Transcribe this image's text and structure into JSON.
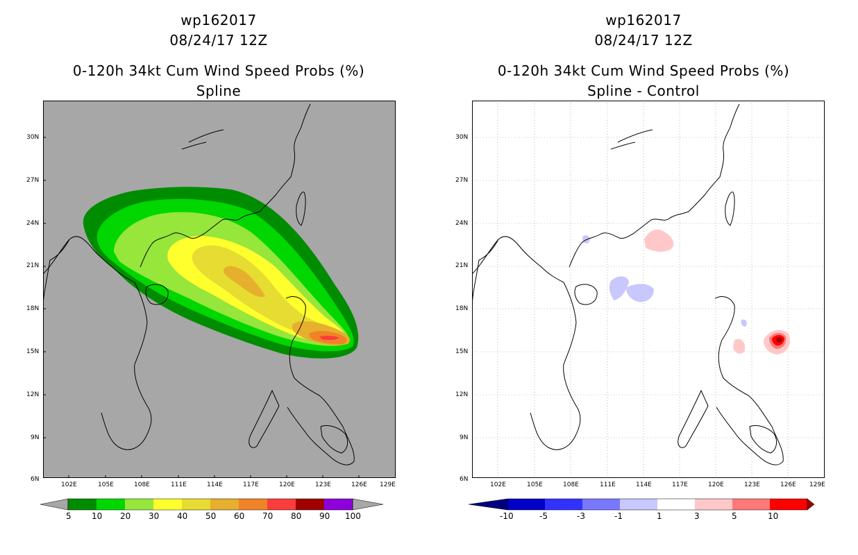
{
  "panels": [
    {
      "title_line1": "wp162017",
      "title_line2": "08/24/17 12Z",
      "title_line3": "0-120h 34kt Cum Wind Speed Probs (%)",
      "title_line4": "Spline",
      "background": "#a7a7a7",
      "colorbar": {
        "labels": [
          "5",
          "10",
          "20",
          "30",
          "40",
          "50",
          "60",
          "70",
          "80",
          "90",
          "100"
        ],
        "colors": [
          "#008c00",
          "#00d700",
          "#96e63c",
          "#ffff2d",
          "#e6dc32",
          "#e6af2d",
          "#f08228",
          "#fa3c3c",
          "#a00000",
          "#8c00dc"
        ]
      }
    },
    {
      "title_line1": "wp162017",
      "title_line2": "08/24/17 12Z",
      "title_line3": "0-120h 34kt Cum Wind Speed Probs (%)",
      "title_line4": "Spline - Control",
      "background": "#ffffff",
      "colorbar": {
        "labels": [
          "-10",
          "-5",
          "-3",
          "-1",
          "1",
          "3",
          "5",
          "10"
        ],
        "colors": [
          "#0000c8",
          "#3232ff",
          "#7878ff",
          "#c8c8ff",
          "#ffffff",
          "#ffc8c8",
          "#ff7878",
          "#ff0000",
          "#a00000"
        ]
      }
    }
  ],
  "lat_labels": [
    "30N",
    "27N",
    "24N",
    "21N",
    "18N",
    "15N",
    "12N",
    "9N",
    "6N"
  ],
  "lon_labels": [
    "102E",
    "105E",
    "108E",
    "111E",
    "114E",
    "117E",
    "120E",
    "123E",
    "126E",
    "129E"
  ]
}
